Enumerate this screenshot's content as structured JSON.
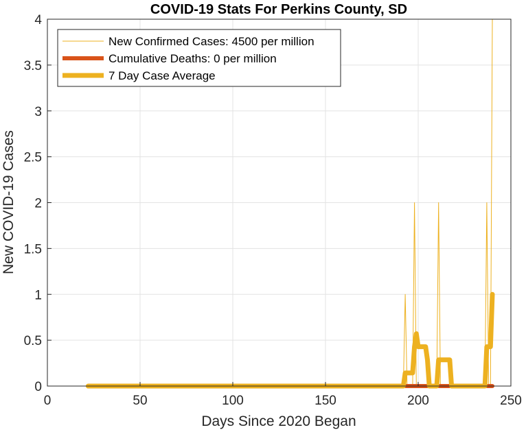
{
  "chart_data": {
    "type": "line",
    "title": "COVID-19 Stats For Perkins County, SD",
    "xlabel": "Days Since 2020 Began",
    "ylabel": "New COVID-19 Cases",
    "xlim": [
      0,
      250
    ],
    "ylim": [
      0,
      4
    ],
    "xticks": [
      0,
      50,
      100,
      150,
      200,
      250
    ],
    "xtick_labels": [
      "0",
      "50",
      "100",
      "150",
      "200",
      "250"
    ],
    "yticks": [
      0,
      0.5,
      1,
      1.5,
      2,
      2.5,
      3,
      3.5,
      4
    ],
    "ytick_labels": [
      "0",
      "0.5",
      "1",
      "1.5",
      "2",
      "2.5",
      "3",
      "3.5",
      "4"
    ],
    "grid": true,
    "legend_position": "top-left",
    "series": [
      {
        "name": "New Confirmed Cases: 4500 per million",
        "color": "#EDB120",
        "style": "thin",
        "x": [
          22,
          192,
          193,
          194,
          197,
          198,
          199,
          210,
          211,
          212,
          236,
          237,
          238,
          239,
          240
        ],
        "y": [
          0,
          0,
          1,
          0,
          0,
          2,
          0,
          0,
          2,
          0,
          0,
          2,
          0,
          0,
          4
        ]
      },
      {
        "name": "Cumulative Deaths: 0 per million",
        "color": "#D95319",
        "style": "thick",
        "x": [
          193,
          240
        ],
        "y": [
          0,
          0
        ]
      },
      {
        "name": "7 Day Case Average",
        "color": "#EDB120",
        "style": "thicker",
        "x": [
          22,
          192,
          193,
          197,
          198,
          199,
          200,
          201,
          204,
          205,
          206,
          209,
          210,
          211,
          217,
          218,
          219,
          235,
          236,
          237,
          238,
          239,
          240
        ],
        "y": [
          0,
          0,
          0.143,
          0.143,
          0.429,
          0.571,
          0.429,
          0.429,
          0.429,
          0.286,
          0,
          0,
          0,
          0.286,
          0.286,
          0,
          0,
          0,
          0,
          0.429,
          0.429,
          0.429,
          1.0
        ]
      }
    ]
  }
}
